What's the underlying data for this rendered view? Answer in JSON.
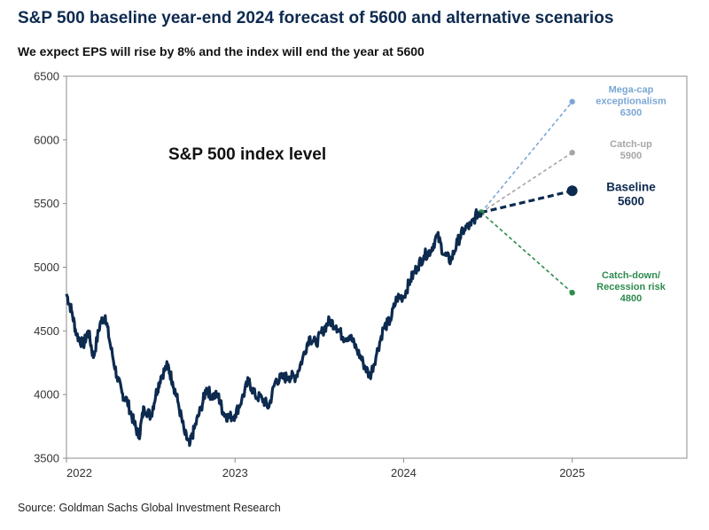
{
  "title": "S&P 500 baseline year-end 2024 forecast of 5600 and alternative scenarios",
  "subtitle": "We expect EPS will rise by 8% and the index will end the year at 5600",
  "source": "Source: Goldman Sachs Global Investment Research",
  "chart_data": {
    "type": "line",
    "inner_label": "S&P 500 index level",
    "ylim": [
      3500,
      6500
    ],
    "yticks": [
      "3500",
      "4000",
      "4500",
      "5000",
      "5500",
      "6000",
      "6500"
    ],
    "xticks": [
      "2022",
      "2023",
      "2024",
      "2025"
    ],
    "xlim": [
      2022.0,
      2025.68
    ],
    "series": [
      {
        "name": "S&P 500",
        "color": "#0d2a4f",
        "x": [
          2022.0,
          2022.03,
          2022.06,
          2022.1,
          2022.13,
          2022.16,
          2022.2,
          2022.23,
          2022.26,
          2022.3,
          2022.33,
          2022.36,
          2022.4,
          2022.43,
          2022.46,
          2022.5,
          2022.53,
          2022.56,
          2022.6,
          2022.63,
          2022.66,
          2022.7,
          2022.73,
          2022.76,
          2022.8,
          2022.83,
          2022.86,
          2022.9,
          2022.93,
          2022.96,
          2023.0,
          2023.04,
          2023.08,
          2023.12,
          2023.16,
          2023.2,
          2023.24,
          2023.28,
          2023.32,
          2023.36,
          2023.4,
          2023.44,
          2023.48,
          2023.52,
          2023.56,
          2023.6,
          2023.64,
          2023.68,
          2023.72,
          2023.76,
          2023.8,
          2023.84,
          2023.88,
          2023.92,
          2023.96,
          2024.0,
          2024.04,
          2024.08,
          2024.12,
          2024.16,
          2024.2,
          2024.24,
          2024.28,
          2024.32,
          2024.36,
          2024.4,
          2024.44,
          2024.46
        ],
        "values": [
          4790,
          4660,
          4470,
          4390,
          4500,
          4290,
          4560,
          4620,
          4390,
          4140,
          4010,
          3950,
          3780,
          3670,
          3900,
          3830,
          4000,
          4140,
          4230,
          4100,
          3950,
          3700,
          3600,
          3740,
          3900,
          4050,
          3990,
          3990,
          3860,
          3820,
          3840,
          3960,
          4110,
          3990,
          3970,
          3900,
          4110,
          4130,
          4140,
          4140,
          4280,
          4450,
          4400,
          4500,
          4580,
          4540,
          4450,
          4460,
          4360,
          4250,
          4140,
          4320,
          4520,
          4580,
          4760,
          4770,
          4900,
          5000,
          5090,
          5130,
          5250,
          5100,
          5050,
          5200,
          5300,
          5330,
          5430,
          5430
        ]
      }
    ],
    "forecast_origin": {
      "x": 2024.46,
      "value": 5430
    },
    "scenarios": [
      {
        "name": "Mega-cap exceptionalism",
        "label_lines": [
          "Mega-cap",
          "exceptionalism"
        ],
        "value": 6300,
        "x": 2025.0,
        "color": "#7ba7d4"
      },
      {
        "name": "Catch-up",
        "label_lines": [
          "Catch-up"
        ],
        "value": 5900,
        "x": 2025.0,
        "color": "#a6a6a6"
      },
      {
        "name": "Baseline",
        "label_lines": [
          "Baseline"
        ],
        "value": 5600,
        "x": 2025.0,
        "color": "#0d2a4f"
      },
      {
        "name": "Catch-down/ Recession risk",
        "label_lines": [
          "Catch-down/",
          "Recession risk"
        ],
        "value": 4800,
        "x": 2025.0,
        "color": "#2e8b4e"
      }
    ]
  }
}
